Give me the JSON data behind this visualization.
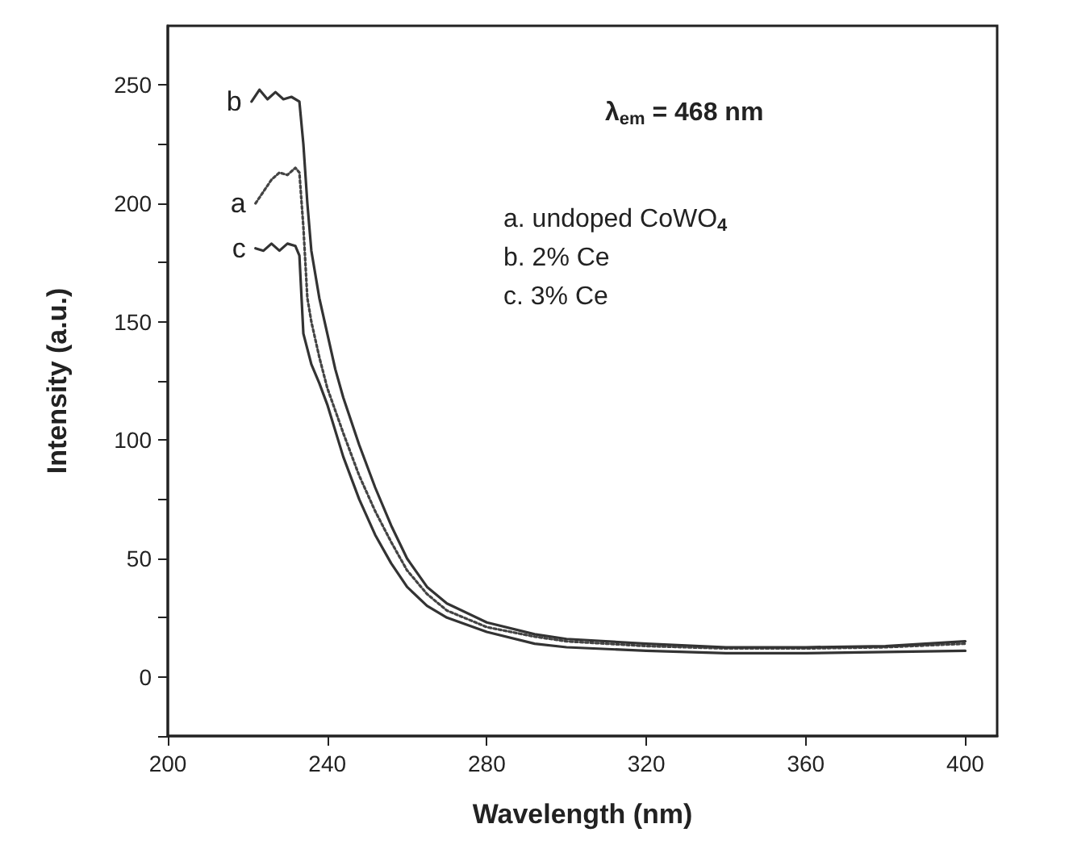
{
  "chart_data": {
    "type": "line",
    "xlabel": "Wavelength (nm)",
    "ylabel": "Intensity (a.u.)",
    "xlim": [
      200,
      408
    ],
    "xticks": [
      200,
      240,
      280,
      320,
      360,
      400
    ],
    "ylim": [
      -25,
      275
    ],
    "yticks": [
      {
        "value": -25,
        "label": null
      },
      0,
      {
        "value": 25,
        "label": null
      },
      50,
      {
        "value": 75,
        "label": null
      },
      100,
      {
        "value": 125,
        "label": null
      },
      150,
      {
        "value": 175,
        "label": null
      },
      200,
      {
        "value": 225,
        "label": null
      },
      250
    ],
    "grid": false,
    "legend": false,
    "marker": "none",
    "annotations": [
      "λ$_{em}$ = 468 nm",
      "a. undoped CoWO$_{4}$",
      "b. 2% Ce",
      "c. 3% Ce"
    ],
    "series": [
      {
        "name": "a",
        "color": "#444444",
        "line_style": "dotted",
        "x": [
          222,
          224,
          226,
          228,
          230,
          232,
          233,
          234,
          235,
          236,
          238,
          240,
          244,
          248,
          252,
          256,
          260,
          265,
          270,
          280,
          292,
          300,
          320,
          340,
          360,
          380,
          400
        ],
        "values": [
          200,
          205,
          210,
          213,
          212,
          215,
          213,
          190,
          160,
          150,
          135,
          122,
          103,
          85,
          70,
          57,
          45,
          35,
          28,
          21,
          17,
          15,
          13,
          12,
          12,
          12.5,
          14
        ]
      },
      {
        "name": "b",
        "color": "#333333",
        "line_style": "solid",
        "x": [
          221,
          223,
          225,
          227,
          229,
          231,
          233,
          234,
          235,
          236,
          238,
          240,
          242,
          244,
          248,
          252,
          256,
          260,
          265,
          270,
          280,
          292,
          300,
          320,
          340,
          360,
          380,
          400
        ],
        "values": [
          243,
          248,
          244,
          247,
          244,
          245,
          243,
          225,
          200,
          180,
          160,
          145,
          130,
          118,
          98,
          80,
          64,
          50,
          38,
          31,
          23,
          18,
          16,
          14,
          12.5,
          12.5,
          13,
          15
        ]
      },
      {
        "name": "c",
        "color": "#333333",
        "line_style": "solid",
        "x": [
          222,
          224,
          226,
          228,
          230,
          232,
          233,
          234,
          236,
          238,
          240,
          244,
          248,
          252,
          256,
          260,
          265,
          270,
          280,
          292,
          300,
          320,
          340,
          360,
          380,
          400
        ],
        "values": [
          181,
          180,
          183,
          180,
          183,
          182,
          178,
          145,
          132,
          124,
          115,
          93,
          75,
          60,
          48,
          38,
          30,
          25,
          19,
          14,
          12.5,
          11,
          10,
          10,
          10.5,
          11
        ]
      }
    ]
  }
}
